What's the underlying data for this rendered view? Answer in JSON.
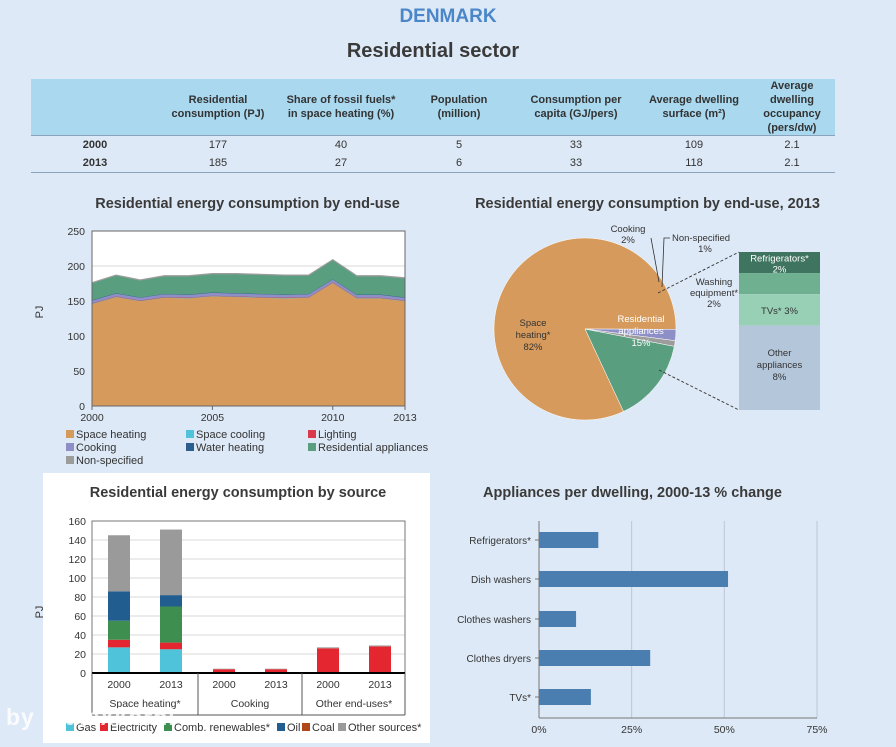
{
  "header": {
    "country": "DENMARK",
    "sector": "Residential sector"
  },
  "indicators": {
    "columns": [
      "",
      "Residential consumption (PJ)",
      "Share of fossil fuels* in space heating (%)",
      "Population (million)",
      "Consumption per capita (GJ/pers)",
      "Average dwelling surface (m²)",
      "Average dwelling occupancy (pers/dw)"
    ],
    "rows": [
      [
        "2000",
        "177",
        "40",
        "5",
        "33",
        "109",
        "2.1"
      ],
      [
        "2013",
        "185",
        "27",
        "6",
        "33",
        "118",
        "2.1"
      ]
    ]
  },
  "colors": {
    "space_heating": "#d69b5c",
    "space_cooling": "#4fc3d9",
    "lighting": "#d9394a",
    "cooling_cooking": "#8e8fc7",
    "water_heating": "#2b5e8c",
    "residential_appliances": "#5a9e80",
    "non_specified": "#9c9c9c",
    "gas": "#4fc3d9",
    "electricity": "#e3262f",
    "comb_renewables": "#3e8f4f",
    "oil": "#215d8e",
    "coal": "#b0471a",
    "other": "#9a9a9a",
    "bar": "#4a7eb0"
  },
  "watermark": "by @alexkorni",
  "chart_data": [
    {
      "type": "area",
      "title": "Residential energy consumption by end-use",
      "xlabel": "",
      "ylabel": "PJ",
      "x": [
        2000,
        2001,
        2002,
        2003,
        2004,
        2005,
        2006,
        2007,
        2008,
        2009,
        2010,
        2011,
        2012,
        2013
      ],
      "xticks": [
        "2000",
        "2005",
        "2010",
        "2013"
      ],
      "yticks": [
        "0",
        "50",
        "100",
        "150",
        "200",
        "250"
      ],
      "ylim": [
        0,
        250
      ],
      "grid": true,
      "series": [
        {
          "name": "Space heating",
          "key": "space_heating",
          "values": [
            146,
            156,
            150,
            155,
            154,
            157,
            156,
            155,
            154,
            155,
            176,
            154,
            154,
            150
          ]
        },
        {
          "name": "Space cooling",
          "key": "space_cooling",
          "values": [
            0.5,
            0.5,
            0.5,
            0.5,
            0.5,
            0.5,
            0.5,
            0.5,
            0.5,
            0.5,
            0.5,
            0.5,
            0.5,
            0.5
          ]
        },
        {
          "name": "Lighting",
          "key": "lighting",
          "values": [
            0.5,
            0.5,
            0.5,
            0.5,
            0.5,
            0.5,
            0.5,
            0.5,
            0.5,
            0.5,
            0.5,
            0.5,
            0.5,
            0.5
          ]
        },
        {
          "name": "Cooking",
          "key": "cooling_cooking",
          "values": [
            4,
            4,
            4,
            4,
            4,
            4,
            4,
            4,
            4,
            4,
            4,
            4,
            4,
            4
          ]
        },
        {
          "name": "Water heating",
          "key": "water_heating",
          "values": [
            0.5,
            0.5,
            0.5,
            0.5,
            0.5,
            0.5,
            0.5,
            0.5,
            0.5,
            0.5,
            0.5,
            0.5,
            0.5,
            0.5
          ]
        },
        {
          "name": "Residential appliances",
          "key": "residential_appliances",
          "values": [
            24,
            25,
            24,
            25,
            26,
            26,
            27,
            27,
            27,
            26,
            27,
            26,
            26,
            27
          ]
        },
        {
          "name": "Non-specified",
          "key": "non_specified",
          "values": [
            1,
            1,
            1,
            1,
            1,
            1,
            1,
            1,
            1,
            1,
            1,
            1,
            1,
            1
          ]
        }
      ]
    },
    {
      "type": "pie",
      "title": "Residential energy consumption by end-use, 2013",
      "slices": [
        {
          "name": "Space heating*",
          "value": 82,
          "label": "82%",
          "key": "space_heating"
        },
        {
          "name": "Cooking",
          "value": 2,
          "label": "2%",
          "key": "cooling_cooking"
        },
        {
          "name": "Non-specified",
          "value": 1,
          "label": "1%",
          "key": "non_specified"
        },
        {
          "name": "Residential appliances",
          "value": 15,
          "label": "15%",
          "key": "residential_appliances"
        }
      ],
      "breakdown": [
        {
          "name": "Refrigerators*",
          "value": 2,
          "label": "2%",
          "color": "#3f7460"
        },
        {
          "name": "Washing equipment*",
          "value": 2,
          "label": "2%",
          "color": "#6fb091"
        },
        {
          "name": "TVs*",
          "value": 3,
          "label": "3%",
          "color": "#98d0b6"
        },
        {
          "name": "Other appliances",
          "value": 8,
          "label": "8%",
          "color": "#b4c6da"
        }
      ]
    },
    {
      "type": "bar",
      "stacked": true,
      "title": "Residential energy consumption by source",
      "ylabel": "PJ",
      "ylim": [
        0,
        160
      ],
      "yticks": [
        "0",
        "20",
        "40",
        "60",
        "80",
        "100",
        "120",
        "140",
        "160"
      ],
      "grid": true,
      "groups": [
        "Space heating*",
        "Cooking",
        "Other end-uses*"
      ],
      "categories": [
        "2000",
        "2013",
        "2000",
        "2013",
        "2000",
        "2013"
      ],
      "series": [
        {
          "name": "Gas",
          "key": "gas",
          "values": [
            27,
            25,
            0,
            0,
            0,
            0
          ]
        },
        {
          "name": "Electricity",
          "key": "electricity",
          "values": [
            8,
            7,
            4,
            4,
            26,
            28
          ]
        },
        {
          "name": "Comb. renewables*",
          "key": "comb_renewables",
          "values": [
            20,
            38,
            0,
            0,
            0,
            0
          ]
        },
        {
          "name": "Oil",
          "key": "oil",
          "values": [
            31,
            12,
            0,
            0,
            0,
            0
          ]
        },
        {
          "name": "Coal",
          "key": "coal",
          "values": [
            0,
            0,
            0,
            0,
            0,
            0
          ]
        },
        {
          "name": "Other sources*",
          "key": "other",
          "values": [
            59,
            69,
            0.5,
            0.5,
            1,
            1
          ]
        }
      ]
    },
    {
      "type": "bar",
      "orientation": "horizontal",
      "title": "Appliances per dwelling, 2000-13 % change",
      "categories": [
        "Refrigerators*",
        "Dish washers",
        "Clothes washers",
        "Clothes dryers",
        "TVs*"
      ],
      "values": [
        16,
        51,
        10,
        30,
        14
      ],
      "xlim": [
        0,
        75
      ],
      "xticks": [
        "0%",
        "25%",
        "50%",
        "75%"
      ],
      "grid": true
    }
  ]
}
